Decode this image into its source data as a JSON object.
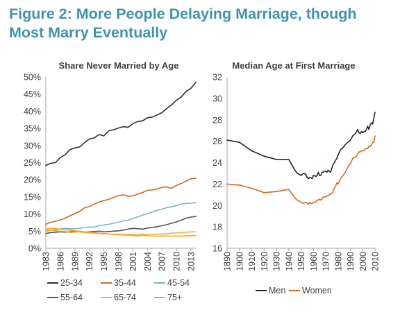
{
  "figure_title_line1": "Figure 2: More People Delaying Marriage, though",
  "figure_title_line2": "Most Marry Eventually",
  "chart_data": [
    {
      "type": "line",
      "title": "Share Never Married by Age",
      "xlabel": "",
      "ylabel": "",
      "xlim": [
        1983,
        2014
      ],
      "ylim": [
        0,
        50
      ],
      "y_tick_labels": [
        "0%",
        "5%",
        "10%",
        "15%",
        "20%",
        "25%",
        "30%",
        "35%",
        "40%",
        "45%",
        "50%"
      ],
      "x_tick_labels": [
        "1983",
        "1986",
        "1989",
        "1992",
        "1995",
        "1998",
        "2001",
        "2004",
        "2007",
        "2010",
        "2013"
      ],
      "grid": false,
      "legend_position": "bottom",
      "series": [
        {
          "name": "25-34",
          "color": "#2b2b2b",
          "x": [
            1983,
            1984,
            1985,
            1986,
            1987,
            1988,
            1989,
            1990,
            1991,
            1992,
            1993,
            1994,
            1995,
            1996,
            1997,
            1998,
            1999,
            2000,
            2001,
            2002,
            2003,
            2004,
            2005,
            2006,
            2007,
            2008,
            2009,
            2010,
            2011,
            2012,
            2013,
            2014
          ],
          "values": [
            24.2,
            24.8,
            25.0,
            26.5,
            27.3,
            28.8,
            29.3,
            29.6,
            30.8,
            31.9,
            32.2,
            33.2,
            32.8,
            34.3,
            34.6,
            35.1,
            35.5,
            35.3,
            36.4,
            37.0,
            37.2,
            38.1,
            38.3,
            38.9,
            39.6,
            40.8,
            41.9,
            43.2,
            44.2,
            45.8,
            46.7,
            48.5
          ]
        },
        {
          "name": "35-44",
          "color": "#d2691e",
          "x": [
            1983,
            1984,
            1985,
            1986,
            1987,
            1988,
            1989,
            1990,
            1991,
            1992,
            1993,
            1994,
            1995,
            1996,
            1997,
            1998,
            1999,
            2000,
            2001,
            2002,
            2003,
            2004,
            2005,
            2006,
            2007,
            2008,
            2009,
            2010,
            2011,
            2012,
            2013,
            2014
          ],
          "values": [
            7.0,
            7.6,
            7.9,
            8.3,
            8.8,
            9.5,
            10.1,
            10.8,
            11.8,
            12.2,
            12.9,
            13.5,
            13.9,
            14.3,
            14.8,
            15.4,
            15.6,
            15.2,
            15.3,
            15.8,
            16.3,
            16.9,
            17.0,
            17.3,
            17.8,
            17.9,
            17.5,
            18.4,
            18.9,
            19.6,
            20.3,
            20.4
          ]
        },
        {
          "name": "45-54",
          "color": "#7fb3c6",
          "x": [
            1983,
            1984,
            1985,
            1986,
            1987,
            1988,
            1989,
            1990,
            1991,
            1992,
            1993,
            1994,
            1995,
            1996,
            1997,
            1998,
            1999,
            2000,
            2001,
            2002,
            2003,
            2004,
            2005,
            2006,
            2007,
            2008,
            2009,
            2010,
            2011,
            2012,
            2013,
            2014
          ],
          "values": [
            5.0,
            5.2,
            5.4,
            5.7,
            5.8,
            5.7,
            5.7,
            5.8,
            6.1,
            6.2,
            6.2,
            6.6,
            6.8,
            7.0,
            7.3,
            7.6,
            8.0,
            8.2,
            8.7,
            9.2,
            9.7,
            10.1,
            10.6,
            11.1,
            11.4,
            11.9,
            12.1,
            12.5,
            12.9,
            13.1,
            13.2,
            13.3
          ]
        },
        {
          "name": "55-64",
          "color": "#555555",
          "x": [
            1983,
            1984,
            1985,
            1986,
            1987,
            1988,
            1989,
            1990,
            1991,
            1992,
            1993,
            1994,
            1995,
            1996,
            1997,
            1998,
            1999,
            2000,
            2001,
            2002,
            2003,
            2004,
            2005,
            2006,
            2007,
            2008,
            2009,
            2010,
            2011,
            2012,
            2013,
            2014
          ],
          "values": [
            4.3,
            4.6,
            4.7,
            4.8,
            4.7,
            4.8,
            4.9,
            4.8,
            4.7,
            4.8,
            4.9,
            5.0,
            4.8,
            4.9,
            5.0,
            5.1,
            5.3,
            5.6,
            5.8,
            5.7,
            5.6,
            5.9,
            6.1,
            6.3,
            6.6,
            6.9,
            7.3,
            7.7,
            8.2,
            8.8,
            9.1,
            9.3
          ]
        },
        {
          "name": "65-74",
          "color": "#e3b53b",
          "x": [
            1983,
            1984,
            1985,
            1986,
            1987,
            1988,
            1989,
            1990,
            1991,
            1992,
            1993,
            1994,
            1995,
            1996,
            1997,
            1998,
            1999,
            2000,
            2001,
            2002,
            2003,
            2004,
            2005,
            2006,
            2007,
            2008,
            2009,
            2010,
            2011,
            2012,
            2013,
            2014
          ],
          "values": [
            5.2,
            5.3,
            5.1,
            5.0,
            4.9,
            4.6,
            4.7,
            4.8,
            4.6,
            4.5,
            4.4,
            4.3,
            4.2,
            4.2,
            4.0,
            4.1,
            4.0,
            4.0,
            4.0,
            3.9,
            4.1,
            4.0,
            4.1,
            4.1,
            4.2,
            4.3,
            4.4,
            4.5,
            4.6,
            4.7,
            4.8,
            4.8
          ]
        },
        {
          "name": "75+",
          "color": "#f5a623",
          "x": [
            1983,
            1984,
            1985,
            1986,
            1987,
            1988,
            1989,
            1990,
            1991,
            1992,
            1993,
            1994,
            1995,
            1996,
            1997,
            1998,
            1999,
            2000,
            2001,
            2002,
            2003,
            2004,
            2005,
            2006,
            2007,
            2008,
            2009,
            2010,
            2011,
            2012,
            2013,
            2014
          ],
          "values": [
            5.6,
            5.8,
            5.7,
            5.6,
            5.4,
            5.3,
            5.1,
            5.0,
            4.8,
            4.7,
            4.6,
            4.4,
            4.3,
            4.2,
            4.0,
            4.0,
            3.9,
            3.8,
            3.7,
            3.6,
            3.8,
            3.6,
            3.6,
            3.5,
            3.6,
            3.6,
            3.5,
            3.6,
            3.5,
            3.6,
            3.7,
            3.7
          ]
        }
      ]
    },
    {
      "type": "line",
      "title": "Median Age at First Marriage",
      "xlabel": "",
      "ylabel": "",
      "xlim": [
        1890,
        2010
      ],
      "ylim": [
        16,
        32
      ],
      "y_tick_labels": [
        "16",
        "18",
        "20",
        "22",
        "24",
        "26",
        "28",
        "30",
        "32"
      ],
      "x_tick_labels": [
        "1890",
        "1900",
        "1910",
        "1920",
        "1930",
        "1940",
        "1950",
        "1960",
        "1970",
        "1980",
        "1990",
        "2000",
        "2010"
      ],
      "grid": false,
      "legend_position": "bottom",
      "series": [
        {
          "name": "Men",
          "color": "#2d1a2b",
          "x": [
            1890,
            1900,
            1910,
            1920,
            1930,
            1940,
            1945,
            1947,
            1950,
            1952,
            1954,
            1955,
            1956,
            1957,
            1958,
            1959,
            1960,
            1961,
            1962,
            1963,
            1964,
            1965,
            1966,
            1967,
            1968,
            1969,
            1970,
            1971,
            1972,
            1973,
            1974,
            1975,
            1976,
            1977,
            1978,
            1979,
            1980,
            1982,
            1984,
            1986,
            1988,
            1990,
            1992,
            1994,
            1996,
            1997,
            1998,
            1999,
            2000,
            2001,
            2002,
            2003,
            2004,
            2005,
            2006,
            2007,
            2008,
            2009,
            2010
          ],
          "values": [
            26.1,
            25.9,
            25.1,
            24.6,
            24.3,
            24.3,
            23.3,
            23.0,
            22.8,
            23.0,
            22.9,
            22.6,
            22.5,
            22.6,
            22.6,
            22.5,
            22.8,
            22.8,
            22.7,
            22.8,
            23.1,
            22.8,
            22.8,
            23.1,
            23.1,
            23.2,
            23.2,
            23.1,
            23.3,
            23.2,
            23.1,
            23.5,
            23.8,
            24.0,
            24.2,
            24.4,
            24.7,
            25.2,
            25.4,
            25.7,
            25.9,
            26.1,
            26.5,
            26.7,
            27.1,
            26.8,
            26.7,
            26.9,
            26.8,
            26.9,
            26.9,
            27.1,
            27.4,
            27.1,
            27.5,
            27.7,
            27.6,
            28.1,
            28.7
          ]
        },
        {
          "name": "Women",
          "color": "#d9651b",
          "x": [
            1890,
            1900,
            1910,
            1920,
            1930,
            1940,
            1945,
            1947,
            1950,
            1952,
            1954,
            1955,
            1956,
            1957,
            1958,
            1959,
            1960,
            1961,
            1962,
            1963,
            1964,
            1965,
            1966,
            1967,
            1968,
            1969,
            1970,
            1971,
            1972,
            1973,
            1974,
            1975,
            1976,
            1977,
            1978,
            1979,
            1980,
            1982,
            1984,
            1986,
            1988,
            1990,
            1992,
            1994,
            1996,
            1997,
            1998,
            1999,
            2000,
            2001,
            2002,
            2003,
            2004,
            2005,
            2006,
            2007,
            2008,
            2009,
            2010
          ],
          "values": [
            22.0,
            21.9,
            21.6,
            21.2,
            21.3,
            21.5,
            20.7,
            20.5,
            20.3,
            20.2,
            20.3,
            20.2,
            20.1,
            20.3,
            20.2,
            20.2,
            20.3,
            20.3,
            20.3,
            20.5,
            20.5,
            20.6,
            20.5,
            20.6,
            20.8,
            20.8,
            20.8,
            20.9,
            20.9,
            21.0,
            21.1,
            21.1,
            21.3,
            21.6,
            21.8,
            22.1,
            22.0,
            22.5,
            22.8,
            23.1,
            23.6,
            23.9,
            24.4,
            24.5,
            24.8,
            25.0,
            25.0,
            25.1,
            25.1,
            25.1,
            25.3,
            25.3,
            25.3,
            25.5,
            25.5,
            25.6,
            25.9,
            25.9,
            26.5
          ]
        }
      ]
    }
  ]
}
